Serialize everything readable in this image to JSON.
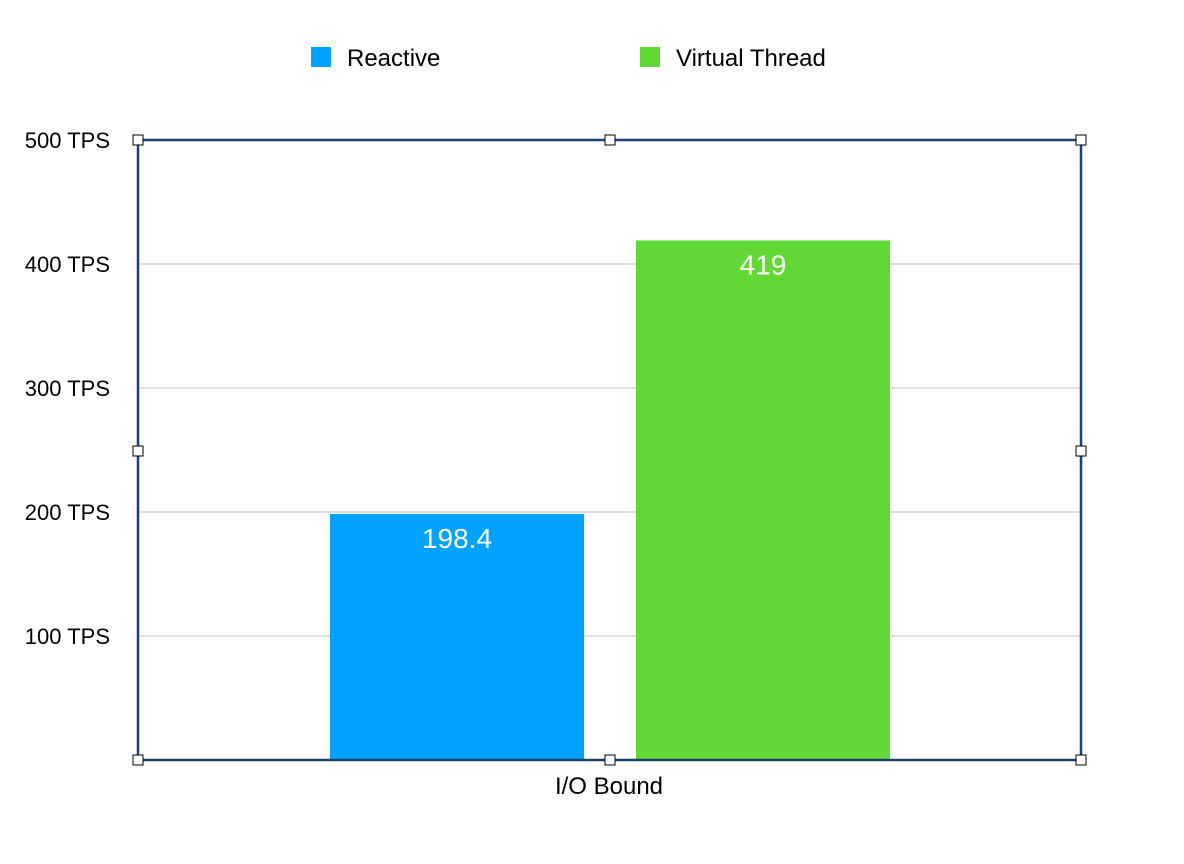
{
  "chart_data": {
    "type": "bar",
    "categories": [
      "I/O Bound"
    ],
    "series": [
      {
        "name": "Reactive",
        "values": [
          198.4
        ],
        "color": "#00A2FF",
        "label": "198.4"
      },
      {
        "name": "Virtual Thread",
        "values": [
          419
        ],
        "color": "#61D836",
        "label": "419"
      }
    ],
    "y_ticks": [
      {
        "value": 100,
        "label": "100 TPS"
      },
      {
        "value": 200,
        "label": "200 TPS"
      },
      {
        "value": 300,
        "label": "300 TPS"
      },
      {
        "value": 400,
        "label": "400 TPS"
      },
      {
        "value": 500,
        "label": "500 TPS"
      }
    ],
    "ylim": [
      0,
      500
    ],
    "grid": true,
    "legend_position": "top-center",
    "title": "",
    "xlabel": "",
    "ylabel": ""
  },
  "colors": {
    "frame": "#1F3F6E",
    "grid": "#BDBDBD",
    "handle_fill": "#FFFFFF",
    "handle_stroke": "#000000"
  }
}
